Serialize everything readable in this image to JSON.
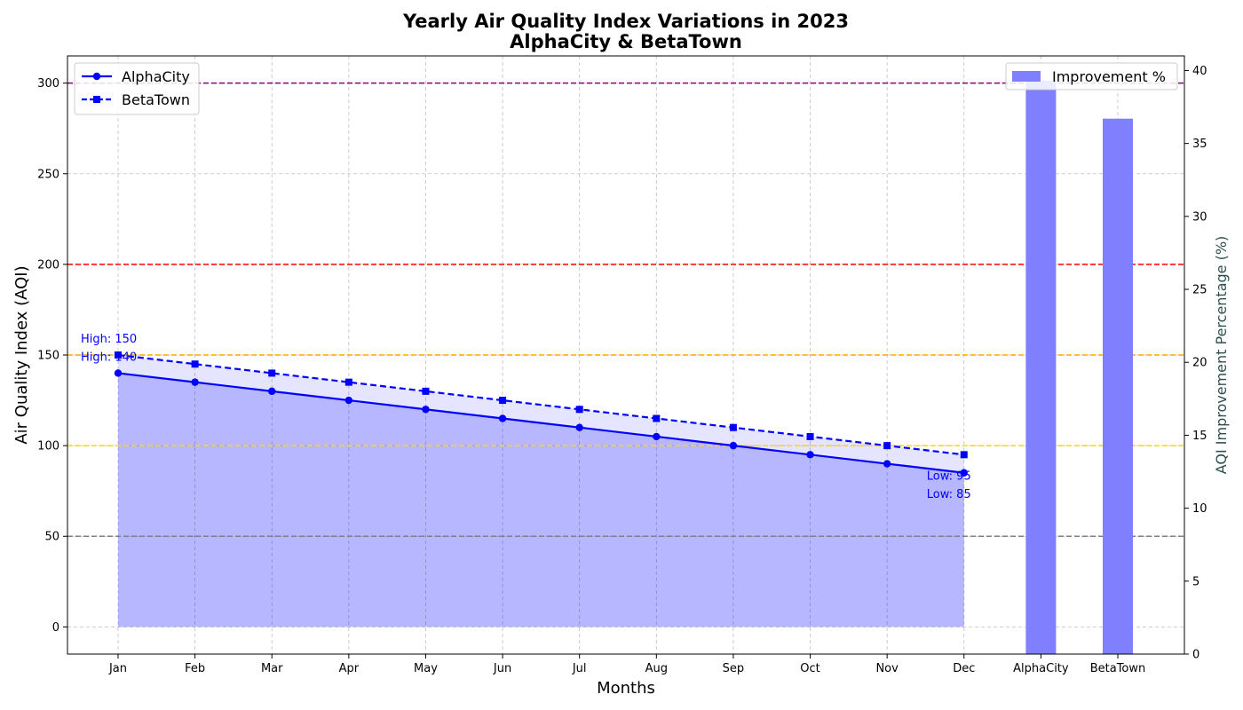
{
  "chart_data": {
    "type": "line",
    "title_line1": "Yearly Air Quality Index Variations in 2023",
    "title_line2": "AlphaCity & BetaTown",
    "xlabel": "Months",
    "ylabel": "Air Quality Index (AQI)",
    "ylabel_right": "AQI Improvement Percentage (%)",
    "categories": [
      "Jan",
      "Feb",
      "Mar",
      "Apr",
      "May",
      "Jun",
      "Jul",
      "Aug",
      "Sep",
      "Oct",
      "Nov",
      "Dec"
    ],
    "series": [
      {
        "name": "AlphaCity",
        "values": [
          140,
          135,
          130,
          125,
          120,
          115,
          110,
          105,
          100,
          95,
          90,
          85
        ],
        "color": "#0000ff",
        "marker": "circle",
        "line_style": "solid"
      },
      {
        "name": "BetaTown",
        "values": [
          150,
          145,
          140,
          135,
          130,
          125,
          120,
          115,
          110,
          105,
          100,
          95
        ],
        "color": "#0000ff",
        "marker": "square",
        "line_style": "dashed"
      }
    ],
    "fill_color": "#0000ff",
    "ylim": [
      -15,
      315
    ],
    "yticks": [
      0,
      50,
      100,
      150,
      200,
      250,
      300
    ],
    "threshold_lines": [
      {
        "value": 50,
        "color": "#808080"
      },
      {
        "value": 100,
        "color": "#ffd700"
      },
      {
        "value": 150,
        "color": "#ffa500"
      },
      {
        "value": 200,
        "color": "#ff0000"
      },
      {
        "value": 300,
        "color": "#800080"
      }
    ],
    "annotations": [
      {
        "text": "High: 150",
        "x": "Jan",
        "y": 150
      },
      {
        "text": "High: 140",
        "x": "Jan",
        "y": 140
      },
      {
        "text": "Low: 95",
        "x": "Dec",
        "y": 95
      },
      {
        "text": "Low: 85",
        "x": "Dec",
        "y": 85
      }
    ],
    "bar_series": {
      "name": "Improvement %",
      "categories": [
        "AlphaCity",
        "BetaTown"
      ],
      "values": [
        39.3,
        36.7
      ],
      "color": "#8080ff",
      "ylim": [
        0,
        41
      ],
      "yticks": [
        0,
        5,
        10,
        15,
        20,
        25,
        30,
        35,
        40
      ]
    },
    "grid": true,
    "legend_left_placement": "upper-left",
    "legend_right_placement": "upper-right"
  }
}
